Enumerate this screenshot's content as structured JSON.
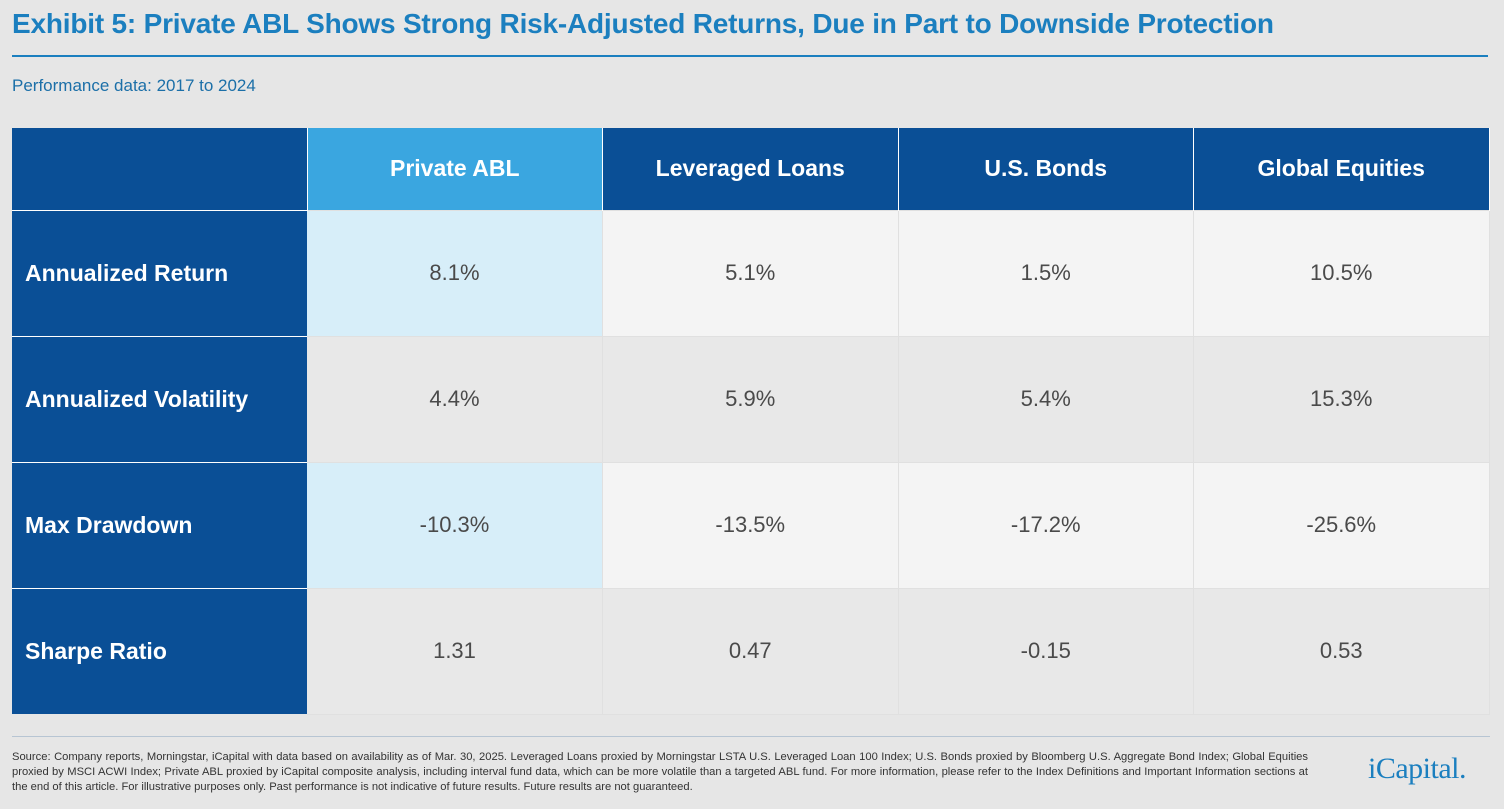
{
  "title": "Exhibit 5: Private ABL Shows Strong Risk-Adjusted Returns, Due in Part to Downside Protection",
  "subtitle": "Performance data: 2017 to 2024",
  "table": {
    "columns": [
      "",
      "Private ABL",
      "Leveraged Loans",
      "U.S. Bonds",
      "Global Equities"
    ],
    "rows": [
      {
        "label": "Annualized Return",
        "values": [
          "8.1%",
          "5.1%",
          "1.5%",
          "10.5%"
        ]
      },
      {
        "label": "Annualized Volatility",
        "values": [
          "4.4%",
          "5.9%",
          "5.4%",
          "15.3%"
        ]
      },
      {
        "label": "Max Drawdown",
        "values": [
          "-10.3%",
          "-13.5%",
          "-17.2%",
          "-25.6%"
        ]
      },
      {
        "label": "Sharpe Ratio",
        "values": [
          "1.31",
          "0.47",
          "-0.15",
          "0.53"
        ]
      }
    ]
  },
  "colors": {
    "header_dark": "#0a4f96",
    "header_highlight": "#3aa6e0",
    "title": "#1b7fbf",
    "highlight_cell": "#d7eef9"
  },
  "footer": {
    "source": "Source: Company reports, Morningstar, iCapital with data based on availability as of Mar. 30, 2025. Leveraged Loans proxied by Morningstar LSTA U.S. Leveraged Loan 100 Index; U.S. Bonds proxied by Bloomberg U.S. Aggregate Bond Index; Global Equities proxied by MSCI ACWI Index; Private ABL proxied by iCapital composite analysis, including interval fund data, which can be more volatile than a targeted ABL fund. For more information, please refer to the Index Definitions and Important Information sections at the end of this article. For illustrative purposes only. Past performance is not indicative of future results. Future results are not guaranteed.",
    "logo": "iCapital."
  }
}
